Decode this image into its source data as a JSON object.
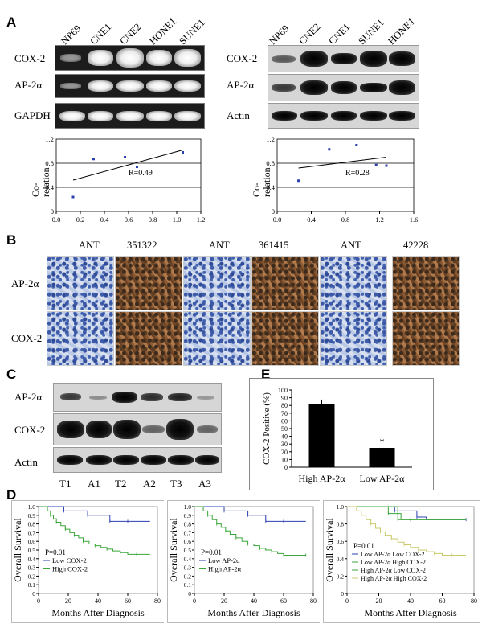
{
  "panels": {
    "A": "A",
    "B": "B",
    "C": "C",
    "D": "D",
    "E": "E"
  },
  "panel_a": {
    "left_lanes": [
      "NP69",
      "CNE1",
      "CNE2",
      "HONE1",
      "SUNE1"
    ],
    "right_lanes": [
      "NP69",
      "CNE2",
      "CNE1",
      "SUNE1",
      "HONE1"
    ],
    "left_rows": [
      "COX-2",
      "AP-2α",
      "GAPDH"
    ],
    "right_rows": [
      "COX-2",
      "AP-2α",
      "Actin"
    ]
  },
  "panel_b": {
    "columns": [
      "ANT",
      "351322",
      "ANT",
      "361415",
      "ANT",
      "42228"
    ],
    "rows": [
      "AP-2α",
      "COX-2"
    ]
  },
  "panel_c": {
    "rows": [
      "AP-2α",
      "COX-2",
      "Actin"
    ],
    "lanes": [
      "T1",
      "A1",
      "T2",
      "A2",
      "T3",
      "A3"
    ]
  },
  "chart_data": [
    {
      "type": "scatter",
      "ylabel": "Co-\nrelation",
      "xlim": [
        0.0,
        1.2
      ],
      "ylim": [
        0,
        1.2
      ],
      "xticks": [
        "0.0",
        "0.2",
        "0.4",
        "0.6",
        "0.8",
        "1.0",
        "1.2"
      ],
      "yticks": [
        "0",
        "0.4",
        "0.8",
        "1.2"
      ],
      "hlines": [
        0.4,
        0.8
      ],
      "points": [
        [
          0.14,
          0.24
        ],
        [
          0.31,
          0.87
        ],
        [
          0.57,
          0.9
        ],
        [
          0.67,
          0.74
        ],
        [
          1.05,
          0.98
        ]
      ],
      "trendline": [
        [
          0.14,
          0.52
        ],
        [
          1.05,
          1.02
        ]
      ],
      "annotation": "R=0.49"
    },
    {
      "type": "scatter",
      "ylabel": "Co-\nrelation",
      "xlim": [
        0.0,
        1.6
      ],
      "ylim": [
        0,
        1.2
      ],
      "xticks": [
        "0.0",
        "0.4",
        "0.8",
        "1.2",
        "1.6"
      ],
      "yticks": [
        "0",
        "0.4",
        "0.8",
        "1.2"
      ],
      "hlines": [
        0.4,
        0.8
      ],
      "points": [
        [
          0.25,
          0.51
        ],
        [
          0.61,
          1.03
        ],
        [
          0.93,
          1.1
        ],
        [
          1.16,
          0.77
        ],
        [
          1.28,
          0.76
        ]
      ],
      "trendline": [
        [
          0.25,
          0.72
        ],
        [
          1.28,
          0.9
        ]
      ],
      "annotation": "R=0.28"
    },
    {
      "type": "bar",
      "categories": [
        "High AP-2α",
        "Low  AP-2α"
      ],
      "values": [
        82,
        25
      ],
      "errors": [
        5,
        0
      ],
      "significance": [
        "",
        "*"
      ],
      "ylabel": "COX-2  Positive  (%)",
      "ylim": [
        0,
        100
      ],
      "yticks": [
        "0",
        "10",
        "20",
        "30",
        "40",
        "50",
        "60",
        "70",
        "80",
        "90",
        "100"
      ]
    },
    {
      "type": "line",
      "xlabel": "Months After Diagnosis",
      "ylabel": "Overall Survival",
      "xlim": [
        0,
        80
      ],
      "ylim": [
        0,
        1.0
      ],
      "xticks": [
        "0",
        "20",
        "40",
        "60",
        "80"
      ],
      "yticks": [
        "0",
        "0.1",
        "0.2",
        "0.3",
        "0.4",
        "0.5",
        "0.6",
        "0.7",
        "0.8",
        "0.9",
        "1.0"
      ],
      "pvalue": "P=0.01",
      "series": [
        {
          "name": "Low COX-2",
          "color": "#2b3fb0",
          "x": [
            0,
            9,
            17,
            27,
            33,
            43,
            48,
            53,
            60,
            75
          ],
          "y": [
            1.0,
            1.0,
            0.95,
            0.95,
            0.9,
            0.9,
            0.83,
            0.83,
            0.83,
            0.83
          ]
        },
        {
          "name": "High COX-2",
          "color": "#3aa63a",
          "x": [
            0,
            6,
            8,
            10,
            12,
            15,
            18,
            21,
            24,
            27,
            30,
            34,
            38,
            42,
            46,
            50,
            55,
            60,
            66,
            75
          ],
          "y": [
            1.0,
            0.95,
            0.9,
            0.86,
            0.82,
            0.78,
            0.74,
            0.7,
            0.67,
            0.64,
            0.6,
            0.57,
            0.55,
            0.53,
            0.51,
            0.49,
            0.47,
            0.45,
            0.45,
            0.45
          ]
        }
      ]
    },
    {
      "type": "line",
      "xlabel": "Months After Diagnosis",
      "ylabel": "Overall Survival",
      "xlim": [
        0,
        80
      ],
      "ylim": [
        0,
        1.0
      ],
      "xticks": [
        "0",
        "20",
        "40",
        "60",
        "80"
      ],
      "yticks": [
        "0",
        "0.1",
        "0.2",
        "0.3",
        "0.4",
        "0.5",
        "0.6",
        "0.7",
        "0.8",
        "0.9",
        "1.0"
      ],
      "pvalue": "P=0.01",
      "series": [
        {
          "name": "Low AP-2α",
          "color": "#2b3fb0",
          "x": [
            0,
            12,
            20,
            28,
            36,
            44,
            48,
            52,
            60,
            75
          ],
          "y": [
            1.0,
            1.0,
            0.95,
            0.95,
            0.9,
            0.9,
            0.83,
            0.83,
            0.83,
            0.83
          ]
        },
        {
          "name": "High  AP-2α",
          "color": "#3aa63a",
          "x": [
            0,
            6,
            9,
            12,
            15,
            18,
            21,
            24,
            28,
            32,
            36,
            40,
            44,
            48,
            52,
            56,
            60,
            66,
            75
          ],
          "y": [
            1.0,
            0.95,
            0.9,
            0.85,
            0.8,
            0.76,
            0.72,
            0.68,
            0.64,
            0.6,
            0.57,
            0.55,
            0.52,
            0.5,
            0.48,
            0.46,
            0.44,
            0.44,
            0.44
          ]
        }
      ]
    },
    {
      "type": "line",
      "xlabel": "Months After Diagnosis",
      "ylabel": "Overall Survival",
      "xlim": [
        0,
        80
      ],
      "ylim": [
        0,
        1.0
      ],
      "xticks": [
        "0",
        "20",
        "40",
        "60",
        "80"
      ],
      "yticks": [
        "0",
        "0.2",
        "0.4",
        "0.6",
        "0.8",
        "1.0"
      ],
      "pvalue": "P=0.01",
      "series": [
        {
          "name": "Low AP-2α Low COX-2",
          "color": "#2b3fb0",
          "x": [
            0,
            20,
            30,
            38,
            44,
            50,
            75
          ],
          "y": [
            1.0,
            1.0,
            0.95,
            0.95,
            0.88,
            0.85,
            0.85
          ]
        },
        {
          "name": "Low AP-2α  High  COX-2",
          "color": "#3aa63a",
          "x": [
            0,
            18,
            26,
            34,
            40,
            75
          ],
          "y": [
            1.0,
            1.0,
            0.92,
            0.85,
            0.85,
            0.85
          ]
        },
        {
          "name": "High AP-2α Low COX-2",
          "color": "#3aa63a",
          "x": [
            0,
            22,
            32,
            75
          ],
          "y": [
            1.0,
            1.0,
            0.85,
            0.85
          ]
        },
        {
          "name": "High  AP-2α High COX-2",
          "color": "#c9c96a",
          "x": [
            0,
            6,
            9,
            12,
            15,
            18,
            21,
            24,
            28,
            32,
            36,
            40,
            45,
            50,
            55,
            60,
            66,
            75
          ],
          "y": [
            1.0,
            0.95,
            0.9,
            0.85,
            0.8,
            0.75,
            0.71,
            0.67,
            0.63,
            0.59,
            0.56,
            0.53,
            0.5,
            0.48,
            0.46,
            0.44,
            0.44,
            0.44
          ]
        }
      ]
    }
  ]
}
